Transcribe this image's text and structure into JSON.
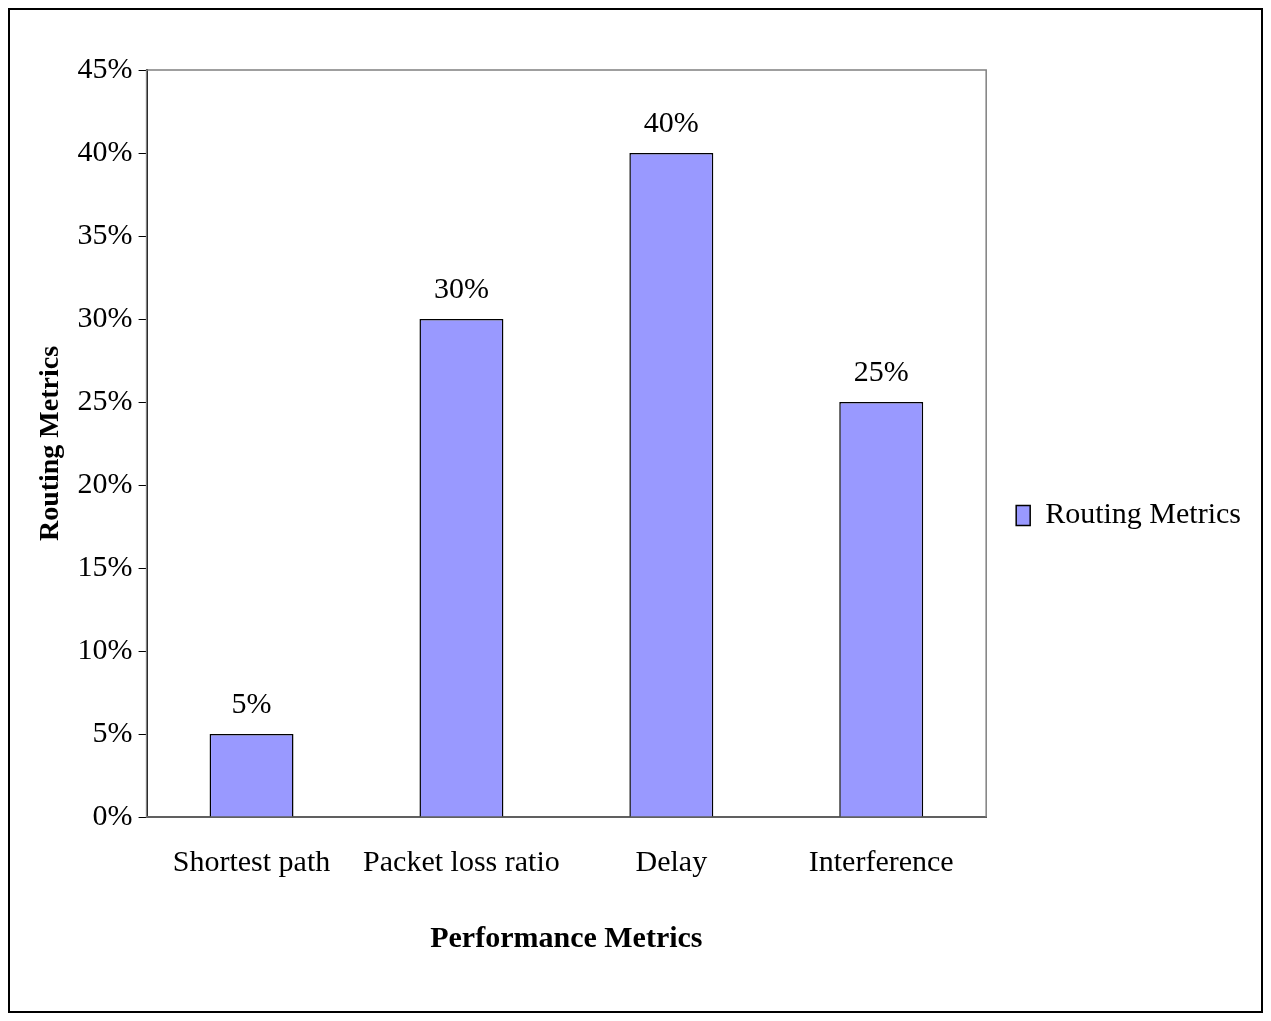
{
  "chart_data": {
    "type": "bar",
    "xlabel": "Performance Metrics",
    "ylabel": "Routing Metrics",
    "categories": [
      "Shortest path",
      "Packet loss ratio",
      "Delay",
      "Interference"
    ],
    "series": [
      {
        "name": "Routing Metrics",
        "color": "#9999ff",
        "values": [
          5,
          30,
          40,
          25
        ],
        "value_labels": [
          "5%",
          "30%",
          "40%",
          "25%"
        ]
      }
    ],
    "ylim": [
      0,
      45
    ],
    "yticks": [
      {
        "value": 0,
        "label": "0%"
      },
      {
        "value": 5,
        "label": "5%"
      },
      {
        "value": 10,
        "label": "10%"
      },
      {
        "value": 15,
        "label": "15%"
      },
      {
        "value": 20,
        "label": "20%"
      },
      {
        "value": 25,
        "label": "25%"
      },
      {
        "value": 30,
        "label": "30%"
      },
      {
        "value": 35,
        "label": "35%"
      },
      {
        "value": 40,
        "label": "40%"
      },
      {
        "value": 45,
        "label": "45%"
      }
    ],
    "grid": false,
    "legend": "right"
  }
}
